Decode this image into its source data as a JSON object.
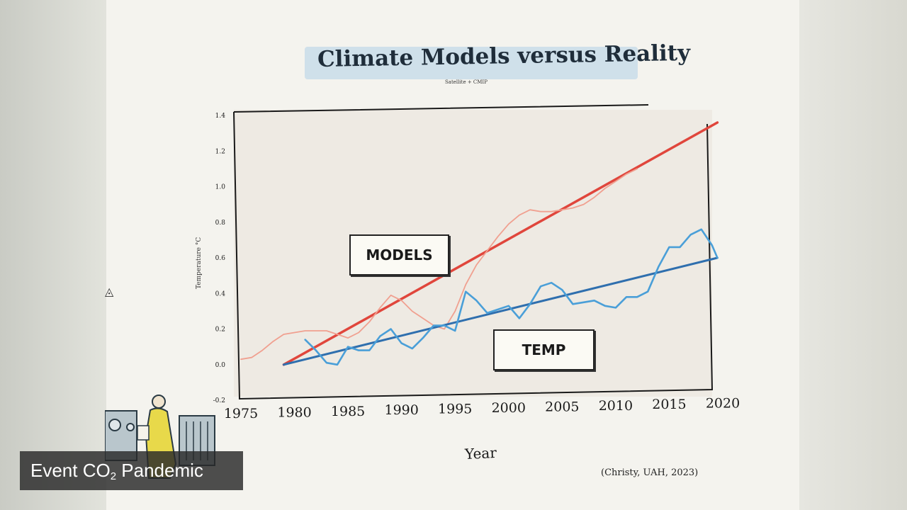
{
  "caption": {
    "prefix": "Event CO",
    "subscript": "2",
    "suffix": " Pandemic"
  },
  "chart_data": {
    "type": "line",
    "title": "Climate Models versus Reality",
    "subtitle": "Satellite + CMIP",
    "xlabel": "Year",
    "ylabel": "Temperature °C",
    "source": "(Christy, UAH, 2023)",
    "xlim": [
      1975,
      2020
    ],
    "ylim": [
      -0.2,
      1.4
    ],
    "x_ticks": [
      1975,
      1980,
      1985,
      1990,
      1995,
      2000,
      2005,
      2010,
      2015,
      2020
    ],
    "y_ticks": [
      -0.2,
      0.0,
      0.2,
      0.4,
      0.6,
      0.8,
      1.0,
      1.2,
      1.4
    ],
    "grid": false,
    "annotations": [
      {
        "text": "MODELS",
        "anchor_series": "models_trend"
      },
      {
        "text": "TEMP",
        "anchor_series": "temp_trend"
      }
    ],
    "series": [
      {
        "key": "models_trend",
        "color": "#e0463c",
        "x": [
          1979,
          2019.5
        ],
        "y": [
          0.0,
          1.36
        ]
      },
      {
        "key": "models",
        "color": "#f0a090",
        "x": [
          1975,
          1976,
          1977,
          1978,
          1979,
          1980,
          1981,
          1982,
          1983,
          1984,
          1985,
          1986,
          1987,
          1988,
          1989,
          1990,
          1991,
          1992,
          1993,
          1994,
          1995,
          1996,
          1997,
          1998,
          1999,
          2000,
          2001,
          2002,
          2003,
          2004,
          2005,
          2006,
          2007,
          2008,
          2009,
          2010,
          2011,
          2012
        ],
        "y": [
          0.03,
          0.04,
          0.08,
          0.13,
          0.17,
          0.18,
          0.19,
          0.19,
          0.19,
          0.17,
          0.15,
          0.18,
          0.24,
          0.32,
          0.39,
          0.36,
          0.3,
          0.26,
          0.22,
          0.2,
          0.3,
          0.45,
          0.56,
          0.64,
          0.72,
          0.79,
          0.84,
          0.87,
          0.86,
          0.86,
          0.87,
          0.88,
          0.9,
          0.94,
          0.99,
          1.03,
          1.07,
          1.1
        ]
      },
      {
        "key": "temp_trend",
        "color": "#2f6fae",
        "x": [
          1979,
          2019.5
        ],
        "y": [
          0.0,
          0.6
        ]
      },
      {
        "key": "temp",
        "color": "#4a9fd8",
        "x": [
          1981,
          1982,
          1983,
          1984,
          1985,
          1986,
          1987,
          1988,
          1989,
          1990,
          1991,
          1992,
          1993,
          1994,
          1995,
          1996,
          1997,
          1998,
          1999,
          2000,
          2001,
          2002,
          2003,
          2004,
          2005,
          2006,
          2007,
          2008,
          2009,
          2010,
          2011,
          2012,
          2013,
          2014,
          2015,
          2016,
          2017,
          2018,
          2019,
          2019.5
        ],
        "y": [
          0.14,
          0.08,
          0.01,
          0.0,
          0.1,
          0.08,
          0.08,
          0.16,
          0.2,
          0.12,
          0.09,
          0.15,
          0.22,
          0.22,
          0.19,
          0.41,
          0.36,
          0.29,
          0.31,
          0.33,
          0.26,
          0.34,
          0.44,
          0.46,
          0.42,
          0.34,
          0.35,
          0.36,
          0.33,
          0.32,
          0.38,
          0.38,
          0.41,
          0.55,
          0.66,
          0.66,
          0.73,
          0.76,
          0.67,
          0.6
        ]
      }
    ]
  }
}
